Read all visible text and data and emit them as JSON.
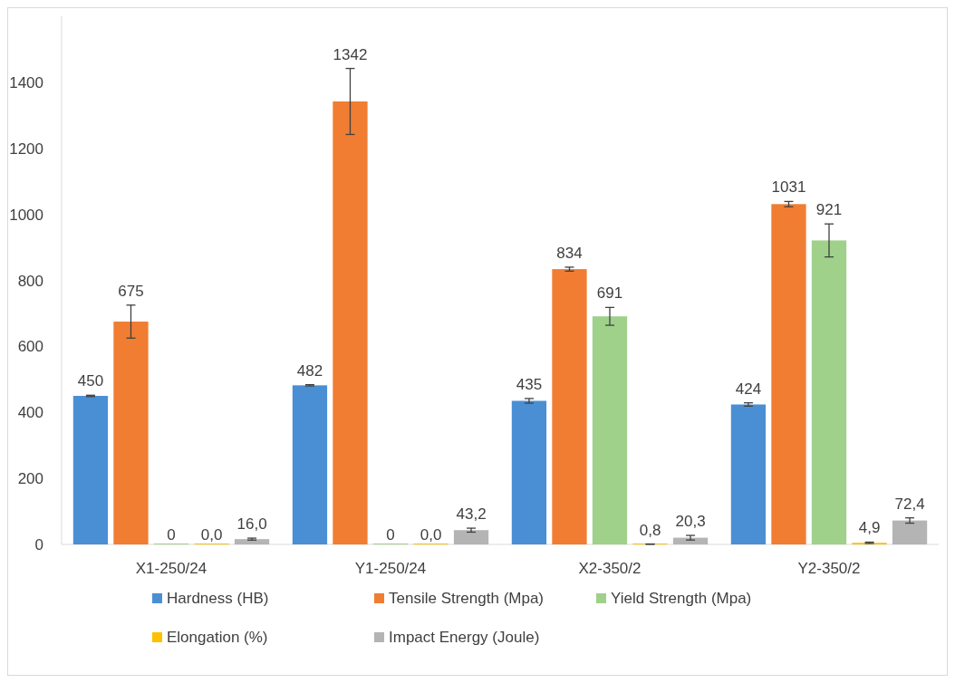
{
  "chart_data": {
    "type": "bar",
    "categories": [
      "X1-250/24",
      "Y1-250/24",
      "X2-350/2",
      "Y2-350/2"
    ],
    "series": [
      {
        "name": "Hardness (HB)",
        "color": "#4a8fd4",
        "values": [
          450,
          482,
          435,
          424
        ],
        "errors": [
          2,
          2,
          7,
          5
        ],
        "value_labels": [
          "450",
          "482",
          "435",
          "424"
        ]
      },
      {
        "name": "Tensile Strength (Mpa)",
        "color": "#f07d32",
        "values": [
          675,
          1342,
          834,
          1031
        ],
        "errors": [
          50,
          100,
          6,
          8
        ],
        "value_labels": [
          "675",
          "1342",
          "834",
          "1031"
        ]
      },
      {
        "name": "Yield Strength (Mpa)",
        "color": "#9fd18a",
        "values": [
          0,
          0,
          691,
          921
        ],
        "errors": [
          null,
          null,
          27,
          50
        ],
        "value_labels": [
          "0",
          "0",
          "691",
          "921"
        ]
      },
      {
        "name": "Elongation (%)",
        "color": "#ffc000",
        "values": [
          0,
          0,
          0.8,
          4.9
        ],
        "errors": [
          null,
          null,
          0.5,
          2
        ],
        "value_labels": [
          "0,0",
          "0,0",
          "0,8",
          "4,9"
        ]
      },
      {
        "name": "Impact Energy (Joule)",
        "color": "#b4b4b4",
        "values": [
          16,
          43.2,
          20.3,
          72.4
        ],
        "errors": [
          3,
          6,
          7,
          8
        ],
        "value_labels": [
          "16,0",
          "43,2",
          "20,3",
          "72,4"
        ]
      }
    ],
    "ylim": [
      0,
      1600
    ],
    "yticks": [
      0,
      200,
      400,
      600,
      800,
      1000,
      1200,
      1400
    ],
    "grid": false,
    "legend": "bottom"
  }
}
